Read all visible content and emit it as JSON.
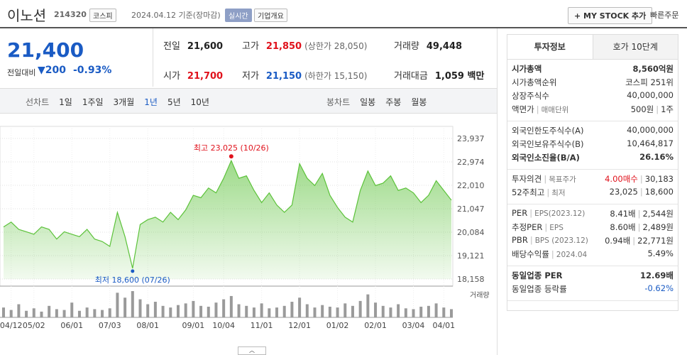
{
  "header": {
    "name": "이노션",
    "code": "214320",
    "market": "코스피",
    "date": "2024.04.12 기준(장마감)",
    "realtime": "실시간",
    "overview": "기업개요",
    "mystock": "+ MY STOCK 추가",
    "quick": "빠른주문"
  },
  "price": {
    "current": "21,400",
    "change_label": "전일대비",
    "change": "200",
    "pct": "-0.93%"
  },
  "quotes": [
    {
      "label": "전일",
      "value": "21,600"
    },
    {
      "label": "고가",
      "value": "21,850",
      "extra": "(상한가 28,050)"
    },
    {
      "label": "거래량",
      "value": "49,448"
    },
    {
      "label": "시가",
      "value": "21,700"
    },
    {
      "label": "저가",
      "value": "21,150",
      "extra": "(하한가 15,150)"
    },
    {
      "label": "거래대금",
      "value": "1,059 백만"
    }
  ],
  "tabs": {
    "line_label": "선차트",
    "line": [
      "1일",
      "1주일",
      "3개월",
      "1년",
      "5년",
      "10년"
    ],
    "candle_label": "봉차트",
    "candle": [
      "일봉",
      "주봉",
      "월봉"
    ]
  },
  "chart_data": {
    "type": "area",
    "categories": [
      null,
      "04/12",
      null,
      null,
      "05/02",
      null,
      null,
      null,
      null,
      "06/01",
      null,
      null,
      null,
      null,
      "07/03",
      null,
      null,
      null,
      null,
      "08/01",
      null,
      null,
      null,
      null,
      null,
      "09/01",
      null,
      null,
      null,
      "10/04",
      null,
      null,
      null,
      null,
      "11/01",
      null,
      null,
      null,
      null,
      "12/01",
      null,
      null,
      null,
      null,
      "01/02",
      null,
      null,
      null,
      null,
      "02/01",
      null,
      null,
      null,
      null,
      "03/04",
      null,
      null,
      null,
      "04/01",
      null
    ],
    "series": [
      {
        "name": "주가",
        "color": "#5cc23a",
        "values": [
          20300,
          20500,
          20200,
          20100,
          20000,
          20300,
          20200,
          19800,
          20100,
          20000,
          19900,
          20200,
          19800,
          19700,
          19500,
          20900,
          19900,
          18600,
          20400,
          20600,
          20700,
          20500,
          20900,
          20600,
          21000,
          21600,
          21500,
          21900,
          21700,
          22300,
          23025,
          22300,
          22400,
          21800,
          21300,
          21700,
          21200,
          20900,
          21200,
          22900,
          22300,
          22000,
          22500,
          21600,
          21100,
          20700,
          20500,
          21800,
          22600,
          22000,
          22100,
          22400,
          21800,
          21900,
          21700,
          21300,
          21600,
          22200,
          21800,
          21400
        ]
      },
      {
        "name": "거래량",
        "color": "#9a9a9a",
        "values": [
          60,
          45,
          80,
          40,
          55,
          35,
          70,
          50,
          45,
          90,
          40,
          60,
          50,
          45,
          55,
          150,
          120,
          160,
          110,
          80,
          95,
          70,
          60,
          75,
          85,
          100,
          70,
          65,
          90,
          110,
          130,
          80,
          70,
          60,
          85,
          55,
          60,
          70,
          95,
          120,
          80,
          60,
          75,
          65,
          60,
          85,
          70,
          100,
          140,
          90,
          70,
          60,
          80,
          55,
          50,
          65,
          70,
          85,
          60,
          50
        ]
      }
    ],
    "ylim": [
      18158,
      23937
    ],
    "yticks": [
      {
        "value": 23937,
        "label": "23,937"
      },
      {
        "value": 22974,
        "label": "22,974"
      },
      {
        "value": 22010,
        "label": "22,010"
      },
      {
        "value": 21047,
        "label": "21,047"
      },
      {
        "value": 20084,
        "label": "20,084"
      },
      {
        "value": 19121,
        "label": "19,121"
      },
      {
        "value": 18158,
        "label": "18,158"
      }
    ],
    "high_label": "최고 23,025 (10/26)",
    "low_label": "최저 18,600 (07/26)",
    "grid": true
  },
  "side": {
    "tabs": [
      "투자정보",
      "호가 10단계"
    ],
    "sections": [
      [
        {
          "label": [
            "시가총액"
          ],
          "values": [
            "8,560억원"
          ]
        },
        {
          "label": [
            "시가총액순위"
          ],
          "values": [
            "코스피 251위"
          ]
        },
        {
          "label": [
            "상장주식수"
          ],
          "values": [
            "40,000,000"
          ]
        },
        {
          "label": [
            "액면가",
            "매매단위"
          ],
          "values": [
            "500원",
            "1주"
          ]
        }
      ],
      [
        {
          "label": [
            "외국인한도주식수(A)"
          ],
          "values": [
            "40,000,000"
          ]
        },
        {
          "label": [
            "외국인보유주식수(B)"
          ],
          "values": [
            "10,464,817"
          ]
        },
        {
          "label": [
            "외국인소진율(B/A)"
          ],
          "values": [
            "26.16%"
          ]
        }
      ],
      [
        {
          "label": [
            "투자의견",
            "목표주가"
          ],
          "values": [
            "4.00매수",
            "30,183"
          ]
        },
        {
          "label": [
            "52주최고",
            "최저"
          ],
          "values": [
            "23,025",
            "18,600"
          ]
        }
      ],
      [
        {
          "label": [
            "PER",
            "EPS(2023.12)"
          ],
          "values": [
            "8.41배",
            "2,544원"
          ]
        },
        {
          "label": [
            "추정PER",
            "EPS"
          ],
          "values": [
            "8.60배",
            "2,489원"
          ]
        },
        {
          "label": [
            "PBR",
            "BPS (2023.12)"
          ],
          "values": [
            "0.94배",
            "22,771원"
          ]
        },
        {
          "label": [
            "배당수익률",
            "2024.04"
          ],
          "values": [
            "5.49%"
          ]
        }
      ],
      [
        {
          "label": [
            "동일업종 PER"
          ],
          "values": [
            "12.69배"
          ]
        },
        {
          "label": [
            "동일업종 등락률"
          ],
          "values": [
            "-0.62%"
          ]
        }
      ]
    ]
  }
}
